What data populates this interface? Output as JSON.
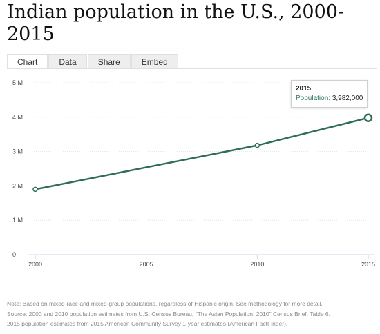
{
  "chart_data": {
    "type": "line",
    "title": "Indian population in the U.S., 2000-2015",
    "x": [
      2000,
      2010,
      2015
    ],
    "series": [
      {
        "name": "Population",
        "values": [
          1900000,
          3180000,
          3982000
        ]
      }
    ],
    "xlim": [
      2000,
      2015
    ],
    "ylim": [
      0,
      5000000
    ],
    "x_ticks": [
      2000,
      2005,
      2010,
      2015
    ],
    "x_tick_labels": [
      "2000",
      "2005",
      "2010",
      "2015"
    ],
    "y_ticks": [
      0,
      1000000,
      2000000,
      3000000,
      4000000,
      5000000
    ],
    "y_tick_labels": [
      "0",
      "1 M",
      "2 M",
      "3 M",
      "4 M",
      "5 M"
    ],
    "grid": true,
    "line_color": "#2f6e55"
  },
  "header": {
    "title": "Indian population in the U.S., 2000-2015"
  },
  "tabs": [
    {
      "label": "Chart",
      "active": true
    },
    {
      "label": "Data",
      "active": false
    },
    {
      "label": "Share",
      "active": false
    },
    {
      "label": "Embed",
      "active": false
    }
  ],
  "tooltip": {
    "year": "2015",
    "label": "Population:",
    "value": "3,982,000"
  },
  "notes": [
    "Note: Based on mixed-race and mixed-group populations, regardless of Hispanic origin. See methodology for more detail.",
    "Source: 2000 and 2010 population estimates from U.S. Census Bureau, \"The Asian Population: 2010\" Census Brief, Table 6.",
    "2015 population estimates from 2015 American Community Survey 1-year estimates (American FactFinder)."
  ]
}
